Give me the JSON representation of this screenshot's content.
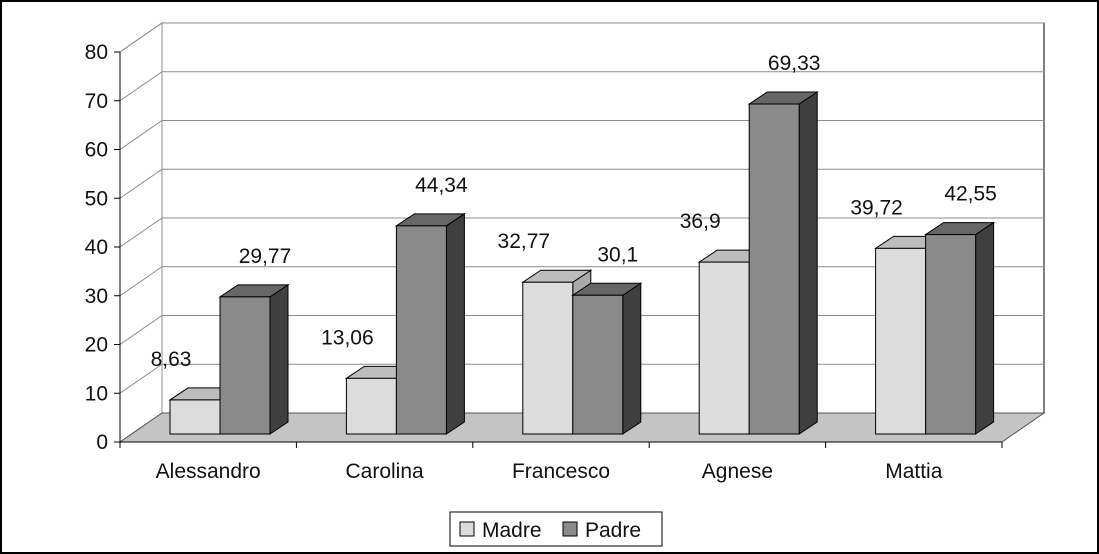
{
  "chart_data": {
    "type": "bar",
    "title": "",
    "xlabel": "",
    "ylabel": "",
    "categories": [
      "Alessandro",
      "Carolina",
      "Francesco",
      "Agnese",
      "Mattia"
    ],
    "series": [
      {
        "name": "Madre",
        "values": [
          8.63,
          13.06,
          32.77,
          36.9,
          39.72
        ],
        "labels": [
          "8,63",
          "13,06",
          "32,77",
          "36,9",
          "39,72"
        ],
        "color": "#dcdcdc"
      },
      {
        "name": "Padre",
        "values": [
          29.77,
          44.34,
          30.1,
          69.33,
          42.55
        ],
        "labels": [
          "29,77",
          "44,34",
          "30,1",
          "69,33",
          "42,55"
        ],
        "color": "#8a8a8a"
      }
    ],
    "ylim": [
      0,
      80
    ],
    "yticks": [
      0,
      10,
      20,
      30,
      40,
      50,
      60,
      70,
      80
    ],
    "grid": true,
    "three_d": true,
    "legend_position": "bottom"
  },
  "colors": {
    "madre_front": "#dcdcdc",
    "madre_side": "#a9a9a9",
    "madre_top": "#bdbdbd",
    "padre_front": "#8a8a8a",
    "padre_side": "#404040",
    "padre_top": "#666666",
    "floor": "#c4c4c4",
    "grid": "#8c8c8c"
  }
}
